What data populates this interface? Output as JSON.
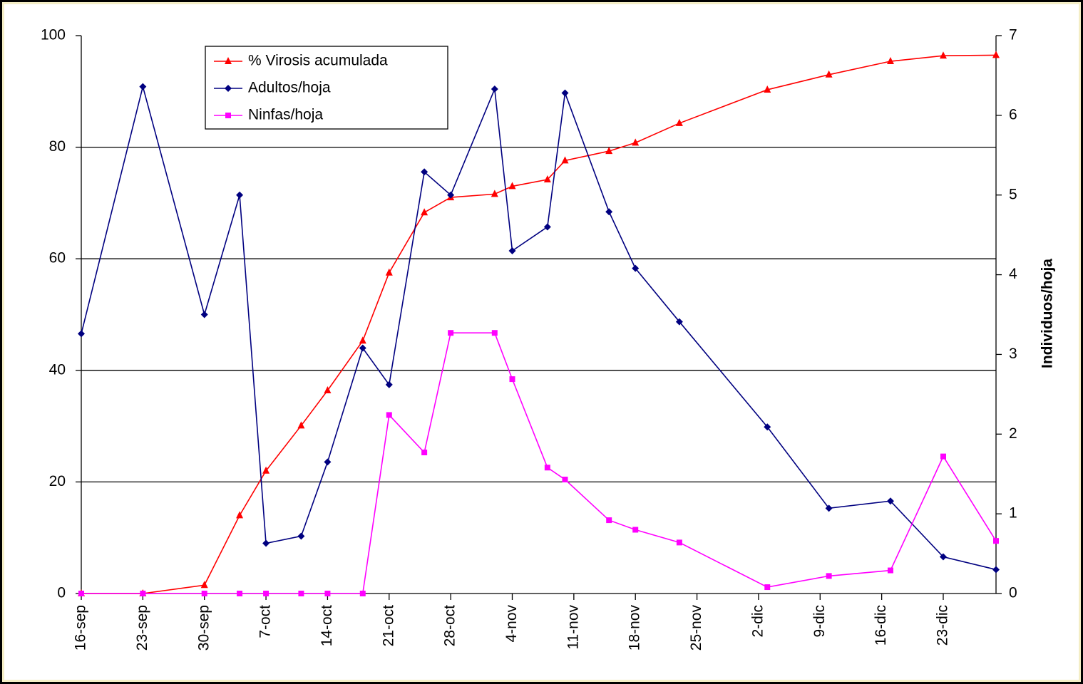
{
  "chart_data": {
    "type": "line",
    "x": [
      "16-sep",
      "23-sep",
      "30-sep",
      "4-oct",
      "7-oct",
      "11-oct",
      "14-oct",
      "18-oct",
      "21-oct",
      "25-oct",
      "28-oct",
      "2-nov",
      "4-nov",
      "8-nov",
      "10-nov",
      "15-nov",
      "18-nov",
      "23-nov",
      "3-dic",
      "10-dic",
      "17-dic",
      "23-dic",
      "29-dic"
    ],
    "xlim": [
      "16-sep",
      "29-dic"
    ],
    "xticks": [
      "16-sep",
      "23-sep",
      "30-sep",
      "7-oct",
      "14-oct",
      "21-oct",
      "28-oct",
      "4-nov",
      "11-nov",
      "18-nov",
      "25-nov",
      "2-dic",
      "9-dic",
      "16-dic",
      "23-dic"
    ],
    "ylim": [
      0,
      100
    ],
    "yticks": [
      0,
      20,
      40,
      60,
      80,
      100
    ],
    "y2lim": [
      0,
      7
    ],
    "y2ticks": [
      0,
      1,
      2,
      3,
      4,
      5,
      6,
      7
    ],
    "y2label": "Individuos/hoja",
    "grid": true,
    "legend": "upper-left",
    "series": [
      {
        "name": "% Virosis acumulada",
        "color": "#ff0000",
        "marker": "triangle",
        "values": [
          0,
          0,
          1.5,
          14,
          22,
          30.1,
          36.4,
          45.3,
          57.5,
          68.3,
          71,
          71.6,
          73,
          74.2,
          77.6,
          79.3,
          80.8,
          84.3,
          90.3,
          93,
          95.4,
          96.4,
          96.5
        ]
      },
      {
        "name": "Adultos/hoja",
        "color": "#000080",
        "marker": "diamond",
        "axis": "y2",
        "values": [
          3.26,
          6.36,
          3.5,
          5,
          0.63,
          0.72,
          1.65,
          3.08,
          2.62,
          5.29,
          5,
          6.33,
          4.3,
          4.6,
          6.28,
          4.79,
          4.08,
          3.41,
          2.09,
          1.07,
          1.16,
          0.46,
          0.3
        ]
      },
      {
        "name": "Ninfas/hoja",
        "color": "#ff00ff",
        "marker": "square",
        "axis": "y2",
        "values": [
          0,
          0,
          0,
          0,
          0,
          0,
          0,
          0,
          2.24,
          1.77,
          3.27,
          3.27,
          2.69,
          1.58,
          1.43,
          0.92,
          0.8,
          0.64,
          0.08,
          0.22,
          0.29,
          1.72,
          0.66
        ]
      }
    ]
  }
}
